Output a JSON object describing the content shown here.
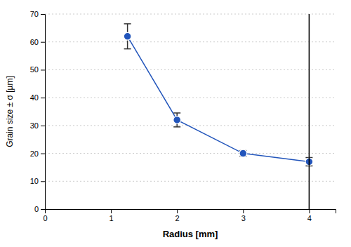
{
  "chart_data": {
    "type": "line",
    "xlabel": "Radius [mm]",
    "ylabel": "Grain size ± σ [µm]",
    "x": [
      1.25,
      2.0,
      3.0,
      4.0
    ],
    "series": [
      {
        "color": "#2255bb",
        "marker": "circle",
        "values": [
          62.0,
          32.0,
          20.0,
          17.0
        ],
        "error_lower": [
          4.5,
          2.5,
          1.0,
          1.5
        ],
        "error_upper": [
          4.5,
          2.5,
          1.0,
          1.5
        ]
      }
    ],
    "vline": 4.0,
    "xlim": [
      0,
      4.4
    ],
    "ylim": [
      0,
      70
    ],
    "xticks": [
      0,
      1,
      2,
      3,
      4
    ],
    "yticks": [
      0,
      10,
      20,
      30,
      40,
      50,
      60,
      70
    ],
    "grid": true
  }
}
